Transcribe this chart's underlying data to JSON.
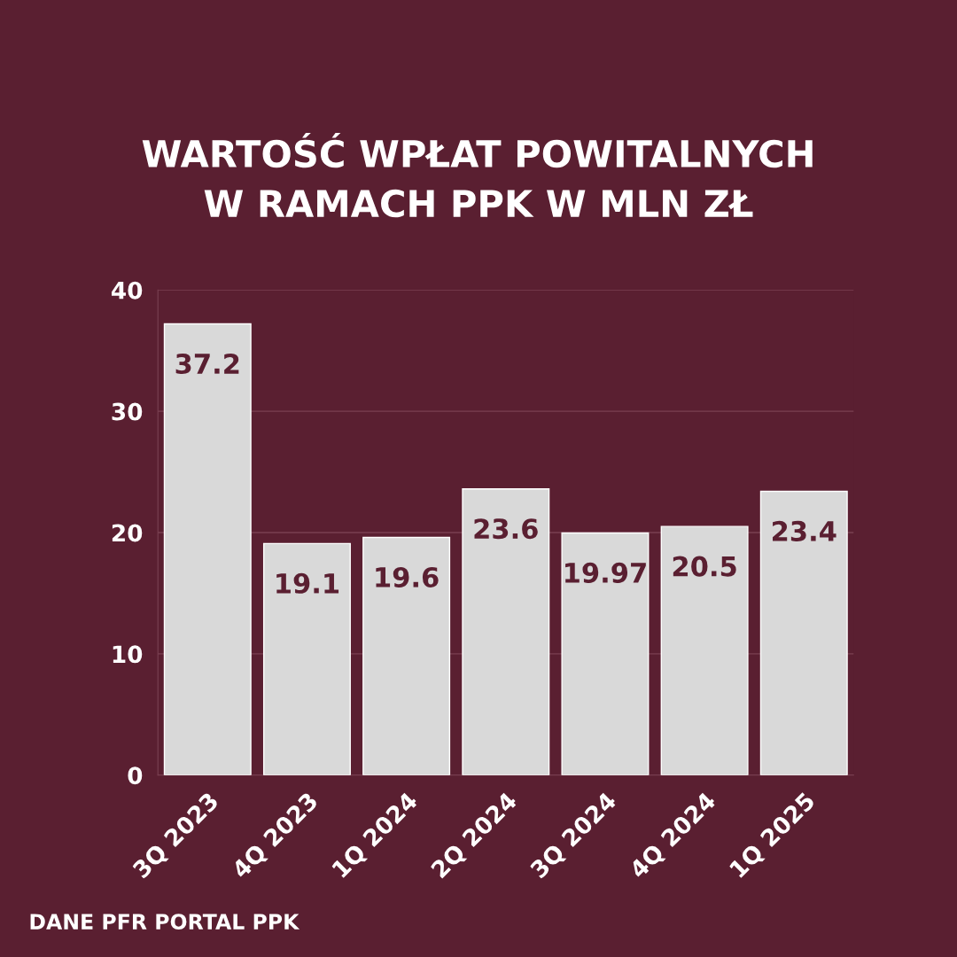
{
  "chart_data": {
    "type": "bar",
    "title": "WARTOŚĆ WPŁAT POWITALNYCH\nW RAMACH PPK W MLN ZŁ",
    "categories": [
      "3Q 2023",
      "4Q 2023",
      "1Q 2024",
      "2Q 2024",
      "3Q 2024",
      "4Q 2024",
      "1Q 2025"
    ],
    "values": [
      37.2,
      19.1,
      19.6,
      23.6,
      19.97,
      20.5,
      23.4
    ],
    "color": "#d9d9d9",
    "ylim": [
      0,
      40
    ],
    "yticks": [
      0,
      10,
      20,
      30,
      40
    ],
    "grid": "y",
    "data_labels": true,
    "annotations": [
      "DANE PFR PORTAL PPK"
    ]
  }
}
